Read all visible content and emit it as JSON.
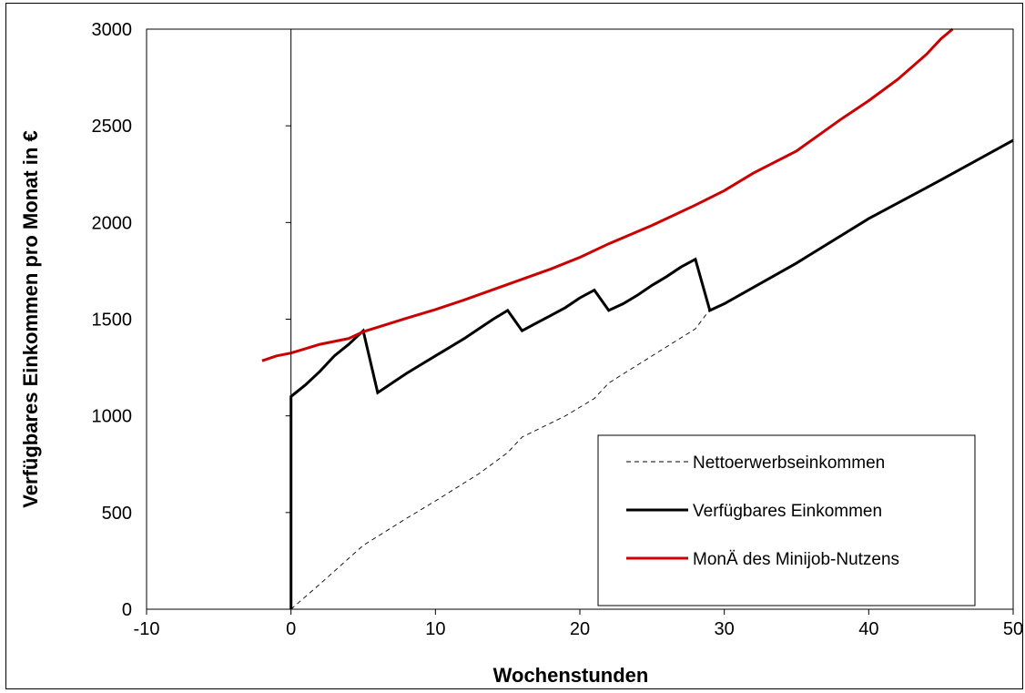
{
  "chart_data": {
    "type": "line",
    "title": "",
    "xlabel": "Wochenstunden",
    "ylabel": "Verfügbares Einkommen pro Monat in €",
    "xlim": [
      -10,
      50
    ],
    "ylim": [
      0,
      3000
    ],
    "xticks": [
      -10,
      0,
      10,
      20,
      30,
      40,
      50
    ],
    "yticks": [
      0,
      500,
      1000,
      1500,
      2000,
      2500,
      3000
    ],
    "grid": false,
    "legend_position": "bottom-right",
    "series": [
      {
        "name": "Nettoerwerbseinkommen",
        "color": "#000000",
        "style": "dashed",
        "points": [
          [
            0,
            0
          ],
          [
            2,
            130
          ],
          [
            5,
            330
          ],
          [
            8,
            470
          ],
          [
            10,
            560
          ],
          [
            13,
            700
          ],
          [
            15,
            810
          ],
          [
            16,
            890
          ],
          [
            19,
            1000
          ],
          [
            21,
            1090
          ],
          [
            22,
            1170
          ],
          [
            25,
            1310
          ],
          [
            28,
            1450
          ],
          [
            29,
            1550
          ]
        ]
      },
      {
        "name": "Verfügbares Einkommen",
        "color": "#000000",
        "style": "solid",
        "points": [
          [
            0,
            0
          ],
          [
            0,
            1100
          ],
          [
            1,
            1160
          ],
          [
            2,
            1230
          ],
          [
            3,
            1310
          ],
          [
            4,
            1370
          ],
          [
            5,
            1440
          ],
          [
            6,
            1120
          ],
          [
            7,
            1170
          ],
          [
            8,
            1220
          ],
          [
            9,
            1265
          ],
          [
            10,
            1310
          ],
          [
            11,
            1355
          ],
          [
            12,
            1400
          ],
          [
            13,
            1450
          ],
          [
            14,
            1500
          ],
          [
            15,
            1545
          ],
          [
            16,
            1440
          ],
          [
            17,
            1480
          ],
          [
            18,
            1520
          ],
          [
            19,
            1560
          ],
          [
            20,
            1610
          ],
          [
            21,
            1650
          ],
          [
            22,
            1545
          ],
          [
            23,
            1580
          ],
          [
            24,
            1625
          ],
          [
            25,
            1675
          ],
          [
            26,
            1720
          ],
          [
            27,
            1770
          ],
          [
            28,
            1810
          ],
          [
            29,
            1545
          ],
          [
            30,
            1580
          ],
          [
            35,
            1790
          ],
          [
            40,
            2020
          ],
          [
            45,
            2220
          ],
          [
            50,
            2425
          ]
        ]
      },
      {
        "name": "MonÄ des Minijob-Nutzens",
        "color": "#cc0000",
        "style": "solid",
        "points": [
          [
            -2,
            1285
          ],
          [
            -1,
            1310
          ],
          [
            0,
            1325
          ],
          [
            2,
            1370
          ],
          [
            4,
            1400
          ],
          [
            5,
            1435
          ],
          [
            8,
            1505
          ],
          [
            10,
            1550
          ],
          [
            12,
            1600
          ],
          [
            15,
            1680
          ],
          [
            18,
            1760
          ],
          [
            20,
            1820
          ],
          [
            22,
            1890
          ],
          [
            25,
            1985
          ],
          [
            28,
            2090
          ],
          [
            30,
            2165
          ],
          [
            32,
            2255
          ],
          [
            35,
            2370
          ],
          [
            38,
            2530
          ],
          [
            40,
            2630
          ],
          [
            42,
            2740
          ],
          [
            44,
            2870
          ],
          [
            45,
            2950
          ],
          [
            45.8,
            3000
          ]
        ]
      }
    ]
  }
}
